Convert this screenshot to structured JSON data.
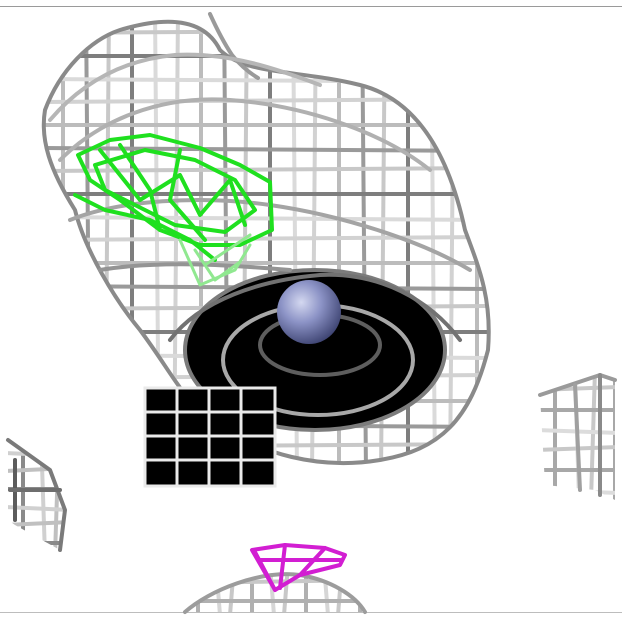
{
  "viewer": {
    "scene": "electron-density-mesh",
    "colors": {
      "background": "#ffffff",
      "mesh_light": "#d8d8d8",
      "mesh_dark": "#6a6a6a",
      "green_density": "#22e022",
      "magenta_density": "#d020d0",
      "atom": "#8890c4"
    },
    "objects": [
      {
        "name": "grey-density-mesh",
        "color": "grey"
      },
      {
        "name": "green-difference-density",
        "color": "green"
      },
      {
        "name": "magenta-difference-density",
        "color": "magenta"
      },
      {
        "name": "metal-ion-sphere",
        "color": "slate-blue"
      }
    ]
  }
}
